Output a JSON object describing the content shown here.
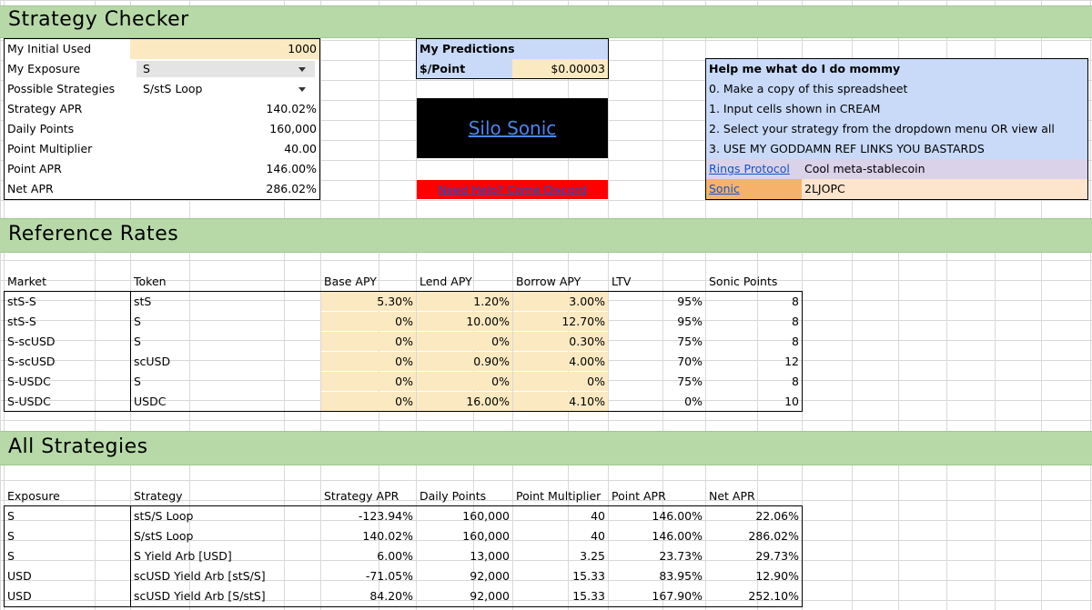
{
  "title": "Strategy Checker",
  "inputs": {
    "initial_used_label": "My Initial Used",
    "initial_used_value": "1000",
    "exposure_label": "My Exposure",
    "exposure_value": "S",
    "strategies_label": "Possible Strategies",
    "strategies_value": "S/stS Loop",
    "strategy_apr_label": "Strategy APR",
    "strategy_apr_value": "140.02%",
    "daily_points_label": "Daily Points",
    "daily_points_value": "160,000",
    "point_multiplier_label": "Point Multiplier",
    "point_multiplier_value": "40.00",
    "point_apr_label": "Point APR",
    "point_apr_value": "146.00%",
    "net_apr_label": "Net APR",
    "net_apr_value": "286.02%"
  },
  "predictions": {
    "header": "My Predictions",
    "point_label": "$/Point",
    "point_value": "$0.00003",
    "silo_link": "Silo Sonic",
    "help_link": "Need Help? Come Discord"
  },
  "help": {
    "title": "Help me what do I do mommy",
    "steps": [
      "0. Make a copy of this spreadsheet",
      "1. Input cells shown in CREAM",
      "2. Select your strategy from the dropdown menu OR view all",
      "3. USE MY GODDAMN REF LINKS YOU BASTARDS"
    ],
    "rings_link": "Rings Protocol",
    "rings_desc": "Cool meta-stablecoin",
    "sonic_link": "Sonic",
    "sonic_code": "2LJOPC"
  },
  "reference": {
    "title": "Reference Rates",
    "headers": [
      "Market",
      "Token",
      "Base APY",
      "Lend APY",
      "Borrow APY",
      "LTV",
      "Sonic Points"
    ],
    "rows": [
      [
        "stS-S",
        "stS",
        "5.30%",
        "1.20%",
        "3.00%",
        "95%",
        "8"
      ],
      [
        "stS-S",
        "S",
        "0%",
        "10.00%",
        "12.70%",
        "95%",
        "8"
      ],
      [
        "S-scUSD",
        "S",
        "0%",
        "0%",
        "0.30%",
        "75%",
        "8"
      ],
      [
        "S-scUSD",
        "scUSD",
        "0%",
        "0.90%",
        "4.00%",
        "70%",
        "12"
      ],
      [
        "S-USDC",
        "S",
        "0%",
        "0%",
        "0%",
        "75%",
        "8"
      ],
      [
        "S-USDC",
        "USDC",
        "0%",
        "16.00%",
        "4.10%",
        "0%",
        "10"
      ]
    ]
  },
  "all": {
    "title": "All Strategies",
    "headers": [
      "Exposure",
      "Strategy",
      "Strategy APR",
      "Daily Points",
      "Point Multiplier",
      "Point APR",
      "Net APR"
    ],
    "rows": [
      [
        "S",
        "stS/S Loop",
        "-123.94%",
        "160,000",
        "40",
        "146.00%",
        "22.06%"
      ],
      [
        "S",
        "S/stS Loop",
        "140.02%",
        "160,000",
        "40",
        "146.00%",
        "286.02%"
      ],
      [
        "S",
        "S Yield Arb [USD]",
        "6.00%",
        "13,000",
        "3.25",
        "23.73%",
        "29.73%"
      ],
      [
        "USD",
        "scUSD Yield Arb [stS/S]",
        "-71.05%",
        "92,000",
        "15.33",
        "83.95%",
        "12.90%"
      ],
      [
        "USD",
        "scUSD Yield Arb [S/stS]",
        "84.20%",
        "92,000",
        "15.33",
        "167.90%",
        "252.10%"
      ]
    ]
  },
  "colors": {
    "section_green": "#b7d9a8",
    "input_cream": "#fbe9c1",
    "predictions_blue": "#c9daf8",
    "silo_black": "#000000",
    "help_red": "#ff0000"
  }
}
